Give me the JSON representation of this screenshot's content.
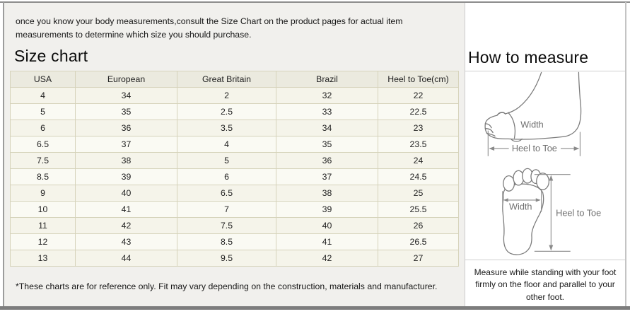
{
  "intro_text": "once you know your body measurements,consult the Size Chart on the product pages for actual item measurements to determine which size you should purchase.",
  "size_chart": {
    "title": "Size chart",
    "columns": [
      "USA",
      "European",
      "Great Britain",
      "Brazil",
      "Heel to Toe(cm)"
    ],
    "rows": [
      [
        "4",
        "34",
        "2",
        "32",
        "22"
      ],
      [
        "5",
        "35",
        "2.5",
        "33",
        "22.5"
      ],
      [
        "6",
        "36",
        "3.5",
        "34",
        "23"
      ],
      [
        "6.5",
        "37",
        "4",
        "35",
        "23.5"
      ],
      [
        "7.5",
        "38",
        "5",
        "36",
        "24"
      ],
      [
        "8.5",
        "39",
        "6",
        "37",
        "24.5"
      ],
      [
        "9",
        "40",
        "6.5",
        "38",
        "25"
      ],
      [
        "10",
        "41",
        "7",
        "39",
        "25.5"
      ],
      [
        "11",
        "42",
        "7.5",
        "40",
        "26"
      ],
      [
        "12",
        "43",
        "8.5",
        "41",
        "26.5"
      ],
      [
        "13",
        "44",
        "9.5",
        "42",
        "27"
      ]
    ],
    "footnote": "*These charts are for reference only. Fit may vary depending on the construction, materials and manufacturer."
  },
  "how_to_measure": {
    "title": "How to measure",
    "side_view": {
      "width_label": "Width",
      "heel_to_toe_label": "Heel to Toe"
    },
    "top_view": {
      "width_label": "Width",
      "heel_to_toe_label": "Heel to Toe"
    },
    "footnote": "Measure while standing with your foot firmly on the floor and parallel to your other foot."
  },
  "colors": {
    "left_panel_bg": "#f1f0ed",
    "table_border": "#d6d3bb",
    "table_header_bg": "#ebeadf",
    "row_odd_bg": "#f5f4ea",
    "row_even_bg": "#fafaf3",
    "frame_line": "#8c8c8c",
    "sketch_stroke": "#7a7a7a"
  }
}
